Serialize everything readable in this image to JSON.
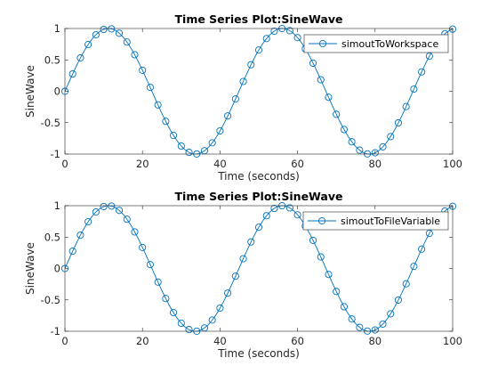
{
  "chart_data": [
    {
      "type": "line",
      "title": "Time Series Plot:SineWave",
      "xlabel": "Time (seconds)",
      "ylabel": "SineWave",
      "xlim": [
        0,
        100
      ],
      "ylim": [
        -1,
        1
      ],
      "x_ticks": [
        "0",
        "20",
        "40",
        "60",
        "80",
        "100"
      ],
      "y_ticks": [
        "1",
        "0.5",
        "0",
        "-0.5",
        "-1"
      ],
      "grid": false,
      "legend_position": "top-right",
      "series": [
        {
          "name": "simoutToWorkspace",
          "function": "sin(0.14*t)",
          "x_start": 0,
          "x_end": 100,
          "x_step": 2,
          "marker": "circle",
          "color": "#0072bd"
        }
      ]
    },
    {
      "type": "line",
      "title": "Time Series Plot:SineWave",
      "xlabel": "Time (seconds)",
      "ylabel": "SineWave",
      "xlim": [
        0,
        100
      ],
      "ylim": [
        -1,
        1
      ],
      "x_ticks": [
        "0",
        "20",
        "40",
        "60",
        "80",
        "100"
      ],
      "y_ticks": [
        "1",
        "0.5",
        "0",
        "-0.5",
        "-1"
      ],
      "grid": false,
      "legend_position": "top-right",
      "series": [
        {
          "name": "simoutToFileVariable",
          "function": "sin(0.14*t)",
          "x_start": 0,
          "x_end": 100,
          "x_step": 2,
          "marker": "circle",
          "color": "#0072bd"
        }
      ]
    }
  ]
}
